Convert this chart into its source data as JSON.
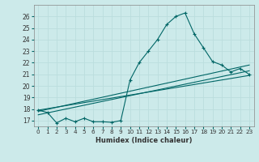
{
  "xlabel": "Humidex (Indice chaleur)",
  "bg_color": "#cceaea",
  "grid_color": "#bbdddd",
  "line_color": "#006666",
  "xlim": [
    -0.5,
    23.5
  ],
  "ylim": [
    16.5,
    27.0
  ],
  "xticks": [
    0,
    1,
    2,
    3,
    4,
    5,
    6,
    7,
    8,
    9,
    10,
    11,
    12,
    13,
    14,
    15,
    16,
    17,
    18,
    19,
    20,
    21,
    22,
    23
  ],
  "yticks": [
    17,
    18,
    19,
    20,
    21,
    22,
    23,
    24,
    25,
    26
  ],
  "main_line_x": [
    0,
    1,
    2,
    3,
    4,
    5,
    6,
    7,
    8,
    9,
    10,
    11,
    12,
    13,
    14,
    15,
    16,
    17,
    18,
    19,
    20,
    21,
    22,
    23
  ],
  "main_line_y": [
    17.9,
    17.7,
    16.8,
    17.2,
    16.9,
    17.2,
    16.9,
    16.9,
    16.85,
    17.0,
    20.5,
    22.0,
    23.0,
    24.0,
    25.3,
    26.0,
    26.3,
    24.5,
    23.3,
    22.1,
    21.8,
    21.2,
    21.5,
    21.0
  ],
  "line2_x": [
    0,
    23
  ],
  "line2_y": [
    17.8,
    21.8
  ],
  "line3_x": [
    0,
    23
  ],
  "line3_y": [
    17.5,
    21.3
  ],
  "line4_x": [
    0,
    23
  ],
  "line4_y": [
    17.9,
    20.9
  ]
}
